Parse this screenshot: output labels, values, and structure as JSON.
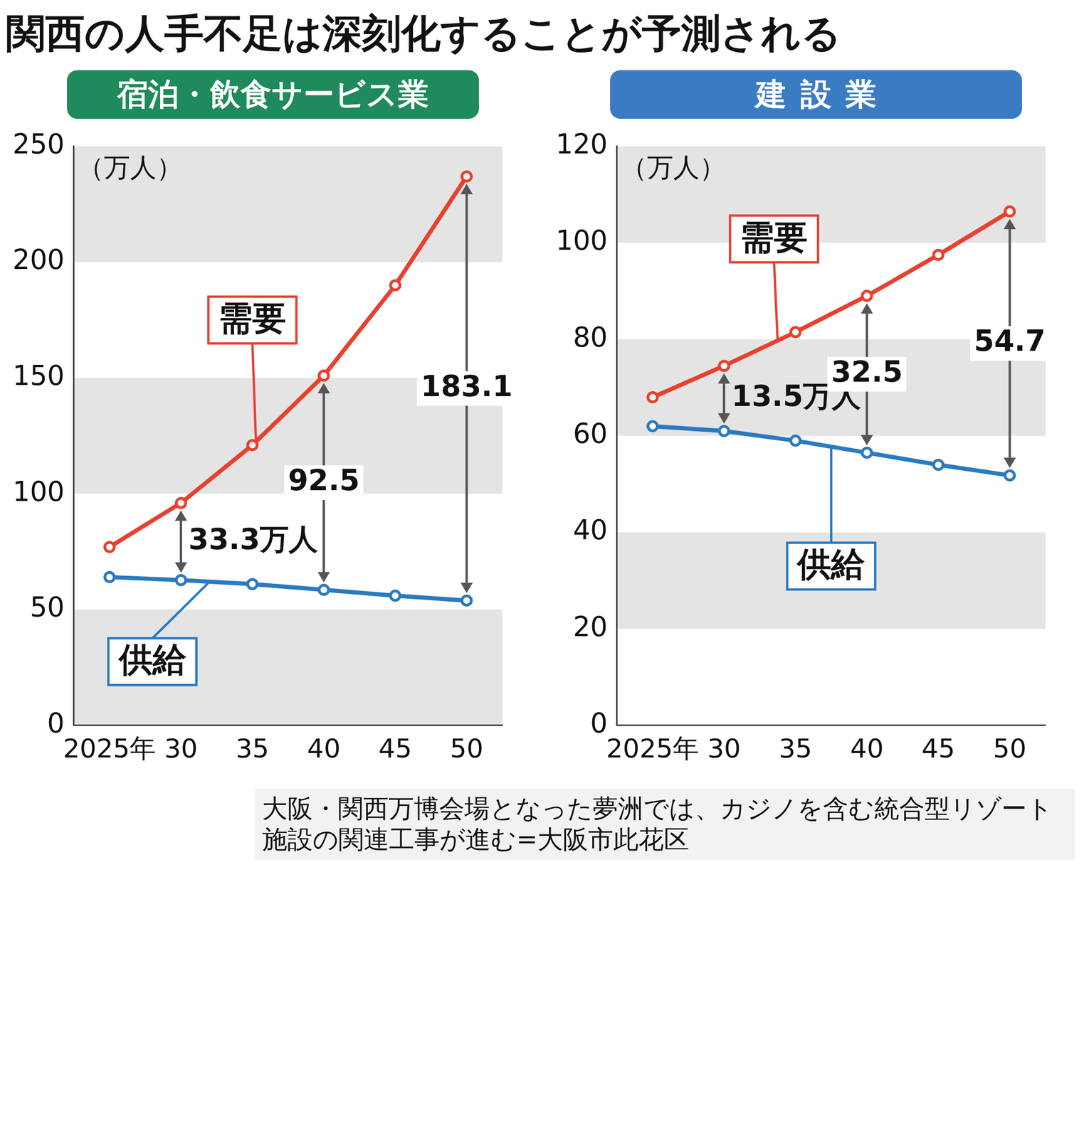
{
  "title": "関西の人手不足は深刻化することが予測される",
  "caption": "大阪・関西万博会場となった夢洲では、カジノを含む統合型リゾート施設の関連工事が進む=大阪市此花区",
  "chart_data": [
    {
      "type": "line",
      "title": "宿泊・飲食サービス業",
      "title_color": "#1f8a5b",
      "y_label": "（万人）",
      "categories": [
        "2025年",
        "30",
        "35",
        "40",
        "45",
        "50"
      ],
      "series": [
        {
          "name": "需要",
          "color": "#e8402f",
          "marker": "circle",
          "values": [
            77,
            96.0,
            121,
            151.0,
            190,
            237.0
          ]
        },
        {
          "name": "供給",
          "color": "#2a7ac0",
          "marker": "circle",
          "values": [
            64,
            62.7,
            61,
            58.5,
            56,
            53.9
          ]
        }
      ],
      "ylim": [
        0,
        250
      ],
      "yticks": [
        0,
        50,
        100,
        150,
        200,
        250
      ],
      "grid": true,
      "annotations": [
        {
          "x": "30",
          "text": "33.3万人"
        },
        {
          "x": "40",
          "text": "92.5"
        },
        {
          "x": "50",
          "text": "183.1"
        }
      ]
    },
    {
      "type": "line",
      "title": "建設業",
      "title_color": "#3a7cc4",
      "y_label": "（万人）",
      "categories": [
        "2025年",
        "30",
        "35",
        "40",
        "45",
        "50"
      ],
      "series": [
        {
          "name": "需要",
          "color": "#e8402f",
          "marker": "circle",
          "values": [
            68,
            74.5,
            81.5,
            89.0,
            97.5,
            106.5
          ]
        },
        {
          "name": "供給",
          "color": "#2a7ac0",
          "marker": "circle",
          "values": [
            62,
            61.0,
            59,
            56.5,
            54,
            51.8
          ]
        }
      ],
      "ylim": [
        0,
        120
      ],
      "yticks": [
        0,
        20,
        40,
        60,
        80,
        100,
        120
      ],
      "grid": true,
      "annotations": [
        {
          "x": "30",
          "text": "13.5万人"
        },
        {
          "x": "40",
          "text": "32.5"
        },
        {
          "x": "50",
          "text": "54.7"
        }
      ]
    }
  ]
}
